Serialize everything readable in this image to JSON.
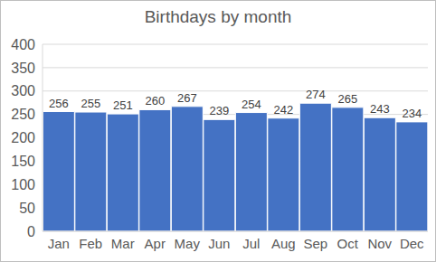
{
  "chart_data": {
    "type": "bar",
    "title": "Birthdays by month",
    "categories": [
      "Jan",
      "Feb",
      "Mar",
      "Apr",
      "May",
      "Jun",
      "Jul",
      "Aug",
      "Sep",
      "Oct",
      "Nov",
      "Dec"
    ],
    "values": [
      256,
      255,
      251,
      260,
      267,
      239,
      254,
      242,
      274,
      265,
      243,
      234
    ],
    "color": "#4472c4",
    "ylim": [
      0,
      400
    ],
    "yticks": [
      0,
      50,
      100,
      150,
      200,
      250,
      300,
      350,
      400
    ],
    "grid": true,
    "data_labels": true
  }
}
